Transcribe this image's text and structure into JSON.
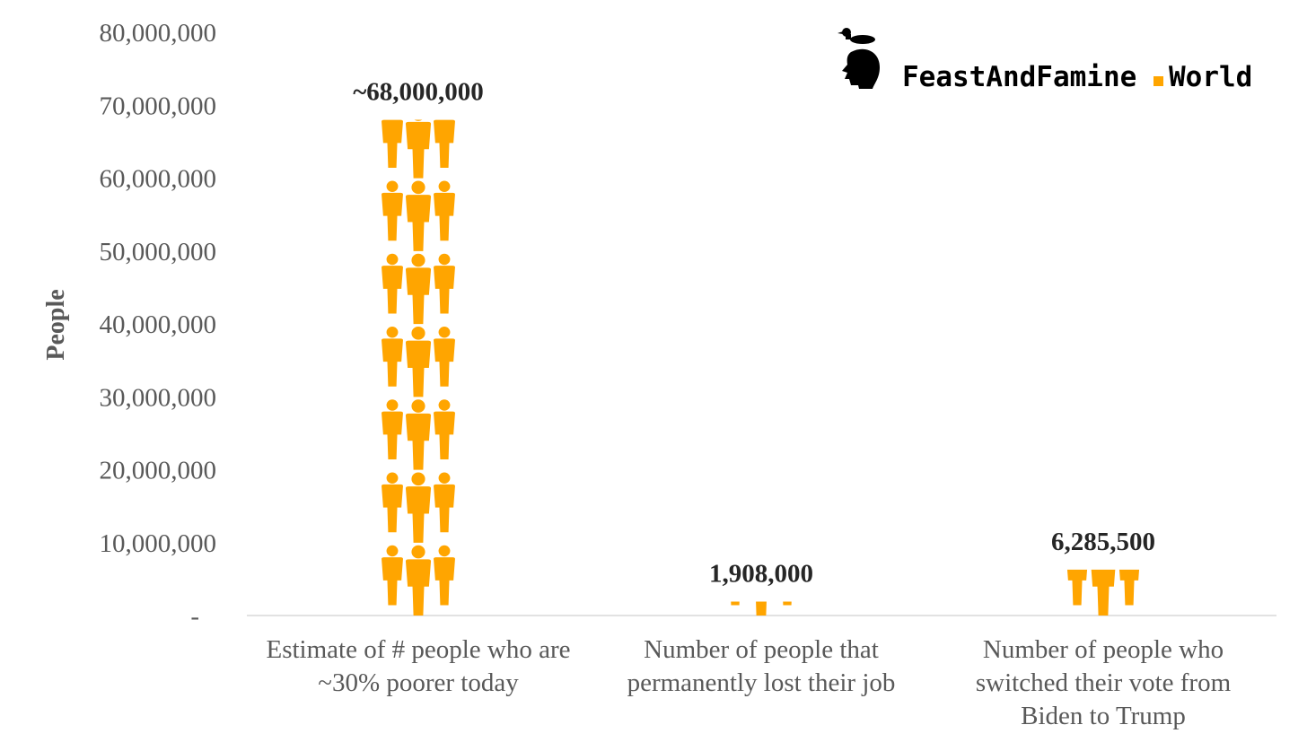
{
  "brand": {
    "name": "FeastAndFamine",
    "dot": ".",
    "tld": "World",
    "accent": "#FFA500"
  },
  "chart_data": {
    "type": "bar",
    "pictograph": "person-group-icon",
    "categories": [
      [
        "Estimate of # people who are",
        "~30% poorer today"
      ],
      [
        "Number of people that",
        "permanently lost their job"
      ],
      [
        "Number of people who",
        "switched their vote from",
        "Biden to Trump"
      ]
    ],
    "values": [
      68000000,
      1908000,
      6285500
    ],
    "data_labels": [
      "~68,000,000",
      "1,908,000",
      "6,285,500"
    ],
    "ylabel": "People",
    "ylim": [
      0,
      80000000
    ],
    "yticks": [
      0,
      10000000,
      20000000,
      30000000,
      40000000,
      50000000,
      60000000,
      70000000,
      80000000
    ],
    "ytick_labels": [
      "-",
      "10,000,000",
      "20,000,000",
      "30,000,000",
      "40,000,000",
      "50,000,000",
      "60,000,000",
      "70,000,000",
      "80,000,000"
    ],
    "bar_color": "#FFA500",
    "grid": false,
    "legend": "none"
  }
}
